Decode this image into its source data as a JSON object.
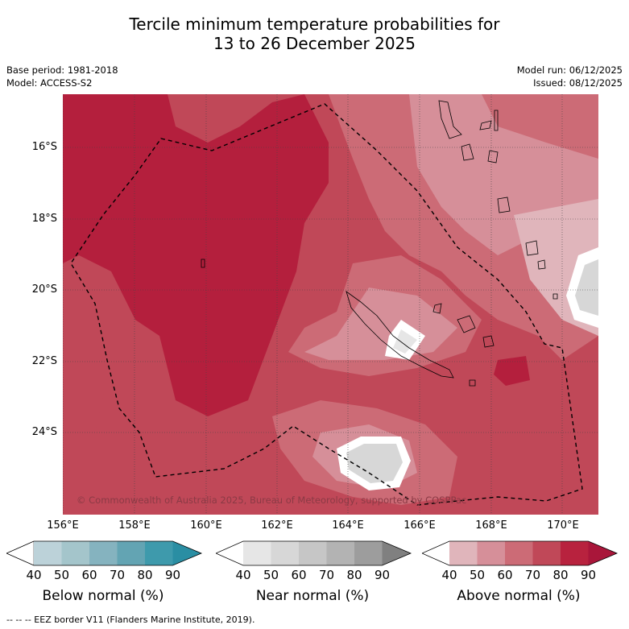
{
  "title": {
    "line1": "Tercile minimum temperature probabilities for",
    "line2": "13 to 26 December 2025"
  },
  "meta": {
    "base_period": "Base period: 1981-2018",
    "model": "Model: ACCESS-S2",
    "model_run": "Model run: 06/12/2025",
    "issued": "Issued: 08/12/2025"
  },
  "map": {
    "lat_labels": [
      "16°S",
      "18°S",
      "20°S",
      "22°S",
      "24°S"
    ],
    "lon_labels": [
      "156°E",
      "158°E",
      "160°E",
      "162°E",
      "164°E",
      "166°E",
      "168°E",
      "170°E"
    ],
    "copyright": "© Commonwealth of Australia 2025, Bureau of Meteorology, supported by COSPPac",
    "region": "New Caledonia EEZ"
  },
  "legend": {
    "tick_values": [
      "40",
      "50",
      "60",
      "70",
      "80",
      "90"
    ],
    "below": {
      "title": "Below normal (%)",
      "colors": [
        "#ffffff",
        "#bcd2d9",
        "#a4c5cb",
        "#85b3bf",
        "#63a4b3",
        "#3e9aac",
        "#2a8ea3"
      ]
    },
    "near": {
      "title": "Near normal (%)",
      "colors": [
        "#ffffff",
        "#e6e6e6",
        "#d7d7d7",
        "#c6c6c6",
        "#b3b3b3",
        "#9d9d9d",
        "#808080"
      ]
    },
    "above": {
      "title": "Above normal (%)",
      "colors": [
        "#ffffff",
        "#e0b5bb",
        "#d68f99",
        "#cc6b76",
        "#c04858",
        "#b8223e",
        "#a9163a"
      ]
    }
  },
  "footer": "--  --  -- EEZ border V11 (Flanders Marine Institute, 2019)."
}
